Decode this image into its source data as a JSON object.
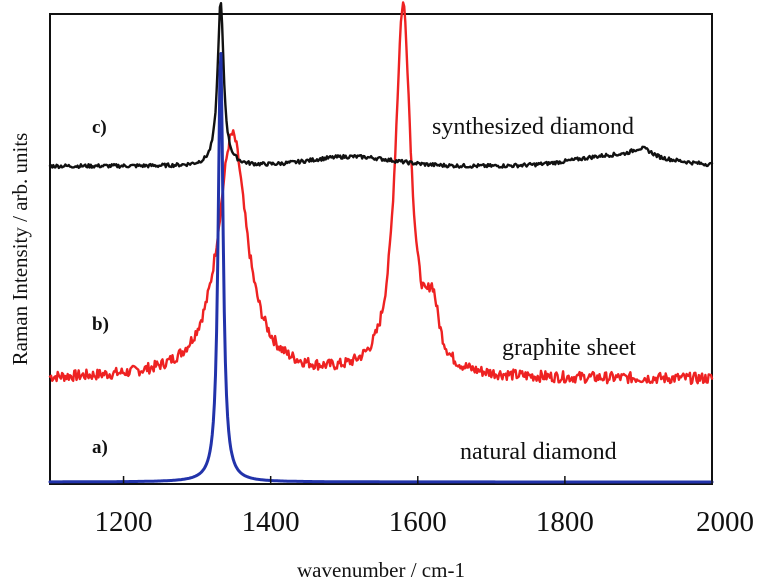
{
  "chart_data": {
    "type": "line",
    "title": "",
    "xlabel": "wavenumber / cm-1",
    "ylabel": "Raman Intensity / arb. units",
    "xlim": [
      1100,
      2000
    ],
    "x_ticks": [
      1200,
      1400,
      1600,
      1800,
      2000
    ],
    "x_tick_labels": [
      "1200",
      "1400",
      "1600",
      "1800",
      "2000"
    ],
    "y_ticks_shown": false,
    "grid": false,
    "legend": "none",
    "series": [
      {
        "name": "natural diamond",
        "panel": "a)",
        "color": "#2233aa",
        "baseline": 0.0,
        "noise": 0.0,
        "peaks": [
          {
            "center": 1332,
            "width": 4,
            "height": 0.93
          }
        ],
        "broad": []
      },
      {
        "name": "graphite sheet",
        "panel": "b)",
        "color": "#ee2222",
        "baseline": 0.22,
        "noise": 0.012,
        "peaks": [
          {
            "center": 1348,
            "width": 24,
            "height": 0.52
          },
          {
            "center": 1580,
            "width": 13,
            "height": 0.79
          },
          {
            "center": 1620,
            "width": 10,
            "height": 0.12
          }
        ],
        "broad": []
      },
      {
        "name": "synthesized diamond",
        "panel": "c)",
        "color": "#111111",
        "baseline": 0.675,
        "noise": 0.004,
        "peaks": [
          {
            "center": 1332,
            "width": 5,
            "height": 0.35
          }
        ],
        "broad": [
          {
            "center": 1510,
            "width": 55,
            "height": 0.02
          },
          {
            "center": 1880,
            "width": 60,
            "height": 0.025
          },
          {
            "center": 1905,
            "width": 12,
            "height": 0.015
          }
        ]
      }
    ]
  }
}
